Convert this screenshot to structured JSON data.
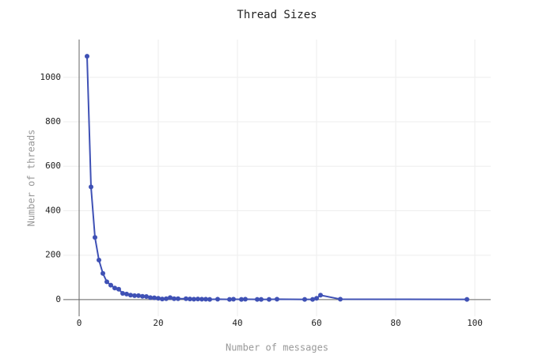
{
  "chart_data": {
    "type": "line",
    "title": "Thread Sizes",
    "x_label": "Number of messages",
    "y_label": "Number of threads",
    "color": "#3f51b5",
    "grid": true,
    "xlim": [
      -4,
      104
    ],
    "ylim": [
      -75,
      1170
    ],
    "xticks": [
      0,
      20,
      40,
      60,
      80,
      100
    ],
    "yticks": [
      0,
      200,
      400,
      600,
      800,
      1000
    ],
    "x": [
      2,
      3,
      4,
      5,
      6,
      7,
      8,
      9,
      10,
      11,
      12,
      13,
      14,
      15,
      16,
      17,
      18,
      19,
      20,
      21,
      22,
      23,
      24,
      25,
      27,
      28,
      29,
      30,
      31,
      32,
      33,
      35,
      38,
      39,
      41,
      42,
      45,
      46,
      48,
      50,
      57,
      59,
      60,
      61,
      66,
      98
    ],
    "values": [
      1095,
      507,
      280,
      178,
      118,
      80,
      65,
      52,
      47,
      28,
      25,
      20,
      18,
      18,
      15,
      14,
      9,
      8,
      6,
      3,
      4,
      9,
      4,
      4,
      4,
      3,
      2,
      3,
      2,
      2,
      1,
      2,
      1,
      2,
      1,
      2,
      1,
      1,
      1,
      2,
      1,
      1,
      6,
      20,
      2,
      1
    ]
  }
}
